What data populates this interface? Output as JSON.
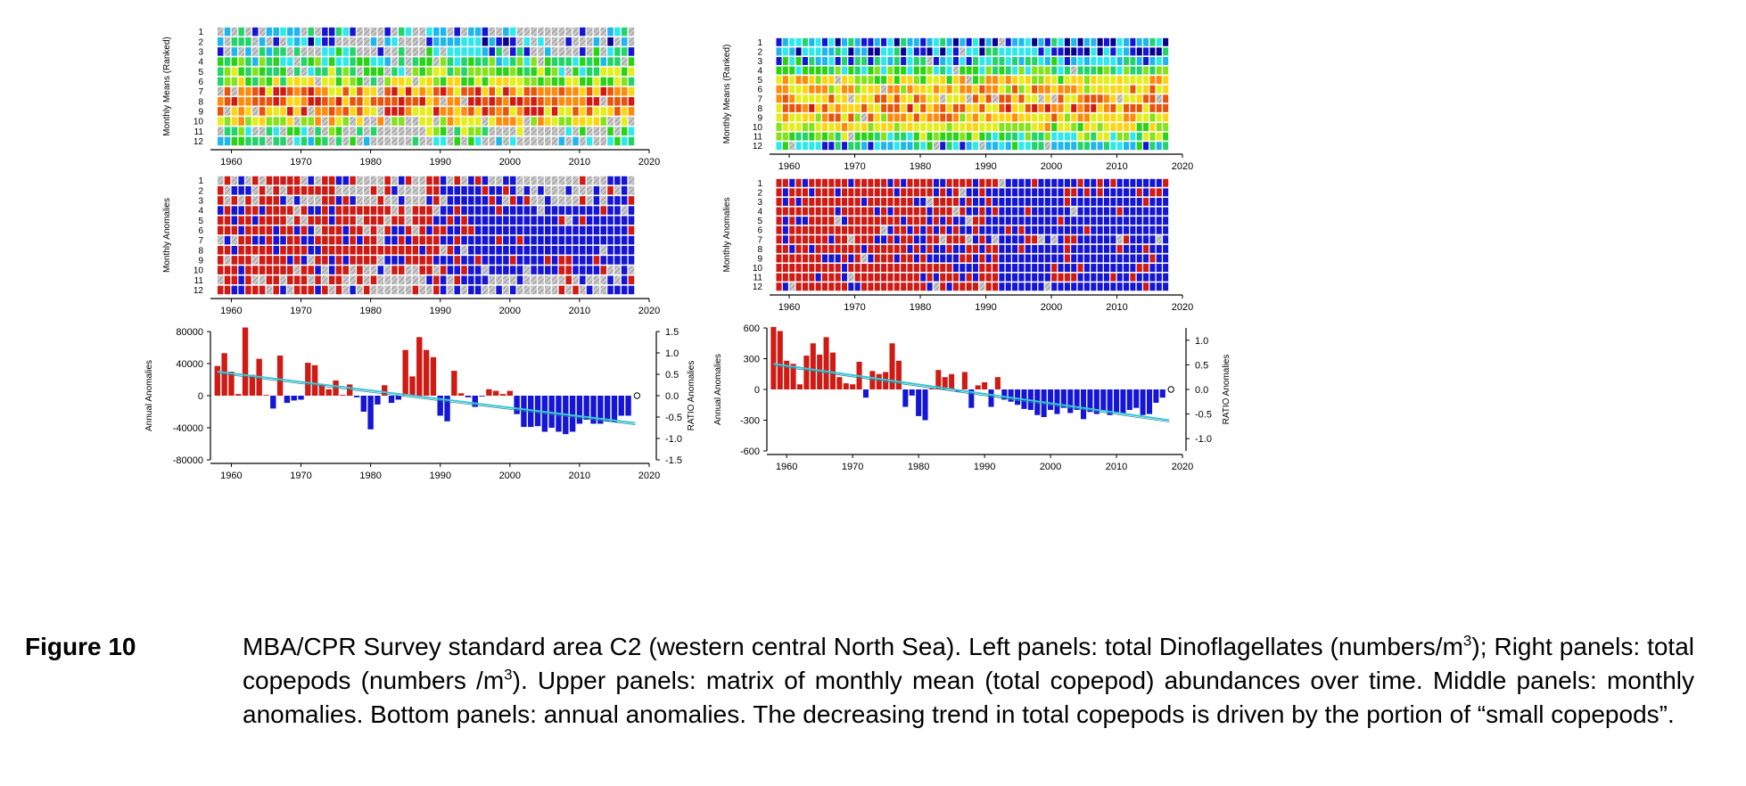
{
  "colors": {
    "positive": "#d01a14",
    "negative": "#1515d5",
    "missing": "#c8c8c8",
    "trend": "#38c6d8",
    "ranked_scale": [
      "#08008c",
      "#1515d5",
      "#1fb6ee",
      "#2ee8ec",
      "#23d46a",
      "#2ad415",
      "#86e21a",
      "#e3ee1c",
      "#ffd414",
      "#ff8a0c",
      "#e8540c",
      "#d21a10"
    ]
  },
  "caption": {
    "label": "Figure 10",
    "p1": "MBA/CPR Survey standard area C2 (western central North Sea). Left panels: total Dinoflagellates (numbers/m",
    "sup1": "3",
    "p2": "); Right panels: total copepods (numbers /m",
    "sup2": "3",
    "p3": "). Upper panels: matrix of monthly mean (total copepod) abundances over time. Middle panels: monthly anomalies. Bottom panels: annual anomalies. The decreasing trend in total copepods is driven by the portion of “small copepods”."
  },
  "chart_data": [
    {
      "id": "left-ranked",
      "type": "heatmap",
      "subject": "total Dinoflagellates",
      "ylabel": "Monthly Means (Ranked)",
      "rows": [
        "1",
        "2",
        "3",
        "4",
        "5",
        "6",
        "7",
        "8",
        "9",
        "10",
        "11",
        "12"
      ],
      "years": [
        1958,
        2017
      ],
      "xticks": [
        "1960",
        "1970",
        "1980",
        "1990",
        "2000",
        "2010",
        "2020"
      ],
      "xlim": [
        1957,
        2020
      ]
    },
    {
      "id": "left-anomalies",
      "type": "heatmap",
      "subject": "total Dinoflagellates",
      "ylabel": "Monthly Anomalies",
      "rows": [
        "1",
        "2",
        "3",
        "4",
        "5",
        "6",
        "7",
        "8",
        "9",
        "10",
        "11",
        "12"
      ],
      "years": [
        1958,
        2017
      ],
      "xticks": [
        "1960",
        "1970",
        "1980",
        "1990",
        "2000",
        "2010",
        "2020"
      ],
      "xlim": [
        1957,
        2020
      ]
    },
    {
      "id": "left-annual",
      "type": "bar",
      "subject": "total Dinoflagellates",
      "ylabel": "Annual Anomalies",
      "ylabel_right": "RATIO Anomalies",
      "ylim": [
        -80000,
        80000
      ],
      "yticks": [
        "80000",
        "40000",
        "0",
        "-40000",
        "-80000"
      ],
      "yticks_right": [
        "1.5",
        "1.0",
        "0.5",
        "0.0",
        "-0.5",
        "-1.0",
        "-1.5"
      ],
      "ylim_right": [
        -1.5,
        1.5
      ],
      "xticks": [
        "1960",
        "1970",
        "1980",
        "1990",
        "2000",
        "2010",
        "2020"
      ],
      "xlim": [
        1957,
        2020
      ],
      "years": [
        1958,
        1959,
        1960,
        1961,
        1962,
        1963,
        1964,
        1965,
        1966,
        1967,
        1968,
        1969,
        1970,
        1971,
        1972,
        1973,
        1974,
        1975,
        1976,
        1977,
        1978,
        1979,
        1980,
        1981,
        1982,
        1983,
        1984,
        1985,
        1986,
        1987,
        1988,
        1989,
        1990,
        1991,
        1992,
        1993,
        1994,
        1995,
        1996,
        1997,
        1998,
        1999,
        2000,
        2001,
        2002,
        2003,
        2004,
        2005,
        2006,
        2007,
        2008,
        2009,
        2010,
        2011,
        2012,
        2013,
        2014,
        2015,
        2016,
        2017
      ],
      "values": [
        37000,
        53000,
        30000,
        2000,
        85000,
        26000,
        46000,
        1000,
        -16000,
        50000,
        -9000,
        -6000,
        -5000,
        41000,
        38000,
        14000,
        8000,
        19000,
        1000,
        14000,
        -2000,
        -20000,
        -42000,
        -11000,
        13000,
        -9000,
        -5000,
        57000,
        24000,
        73000,
        57000,
        48000,
        -25000,
        -32000,
        31000,
        3000,
        -2000,
        -14000,
        -1000,
        8000,
        6000,
        2000,
        6000,
        -23000,
        -39000,
        -39000,
        -38000,
        -45000,
        -40000,
        -45000,
        -48000,
        -45000,
        -35000,
        -30000,
        -35000,
        -35000,
        -32000,
        -33000,
        -25000,
        -25000
      ],
      "trend": {
        "x": [
          1958,
          2018
        ],
        "y": [
          30000,
          -34000
        ]
      },
      "ratio_marker": {
        "x": 2018,
        "y": 0.0
      }
    },
    {
      "id": "right-ranked",
      "type": "heatmap",
      "subject": "total copepods",
      "ylabel": "Monthly Means (Ranked)",
      "rows": [
        "1",
        "2",
        "3",
        "4",
        "5",
        "6",
        "7",
        "8",
        "9",
        "10",
        "11",
        "12"
      ],
      "years": [
        1958,
        2017
      ],
      "xticks": [
        "1960",
        "1970",
        "1980",
        "1990",
        "2000",
        "2010",
        "2020"
      ],
      "xlim": [
        1957,
        2020
      ]
    },
    {
      "id": "right-anomalies",
      "type": "heatmap",
      "subject": "total copepods",
      "ylabel": "Monthly Anomalies",
      "rows": [
        "1",
        "2",
        "3",
        "4",
        "5",
        "6",
        "7",
        "8",
        "9",
        "10",
        "11",
        "12"
      ],
      "years": [
        1958,
        2017
      ],
      "xticks": [
        "1960",
        "1970",
        "1980",
        "1990",
        "2000",
        "2010",
        "2020"
      ],
      "xlim": [
        1957,
        2020
      ]
    },
    {
      "id": "right-annual",
      "type": "bar",
      "subject": "total copepods",
      "ylabel": "Annual Anomalies",
      "ylabel_right": "RATIO Anomalies",
      "ylim": [
        -600,
        600
      ],
      "yticks": [
        "600",
        "300",
        "0",
        "-300",
        "-600"
      ],
      "yticks_right": [
        "1.0",
        "0.5",
        "0.0",
        "-0.5",
        "-1.0"
      ],
      "ylim_right": [
        -1.25,
        1.25
      ],
      "xticks": [
        "1960",
        "1970",
        "1980",
        "1990",
        "2000",
        "2010",
        "2020"
      ],
      "xlim": [
        1957,
        2020
      ],
      "years": [
        1958,
        1959,
        1960,
        1961,
        1962,
        1963,
        1964,
        1965,
        1966,
        1967,
        1968,
        1969,
        1970,
        1971,
        1972,
        1973,
        1974,
        1975,
        1976,
        1977,
        1978,
        1979,
        1980,
        1981,
        1982,
        1983,
        1984,
        1985,
        1986,
        1987,
        1988,
        1989,
        1990,
        1991,
        1992,
        1993,
        1994,
        1995,
        1996,
        1997,
        1998,
        1999,
        2000,
        2001,
        2002,
        2003,
        2004,
        2005,
        2006,
        2007,
        2008,
        2009,
        2010,
        2011,
        2012,
        2013,
        2014,
        2015,
        2016,
        2017
      ],
      "values": [
        610,
        570,
        280,
        250,
        50,
        330,
        450,
        340,
        510,
        360,
        120,
        60,
        50,
        270,
        -80,
        180,
        150,
        170,
        450,
        280,
        -170,
        -60,
        -260,
        -300,
        10,
        190,
        120,
        150,
        -20,
        170,
        -180,
        40,
        70,
        -170,
        120,
        -100,
        -120,
        -150,
        -190,
        -200,
        -250,
        -270,
        -200,
        -240,
        -180,
        -230,
        -200,
        -290,
        -220,
        -240,
        -210,
        -250,
        -230,
        -240,
        -200,
        -180,
        -250,
        -240,
        -130,
        -80
      ],
      "trend": {
        "x": [
          1958,
          2018
        ],
        "y": [
          250,
          -300
        ]
      },
      "ratio_marker": {
        "x": 2018,
        "y": 0.0
      }
    }
  ]
}
